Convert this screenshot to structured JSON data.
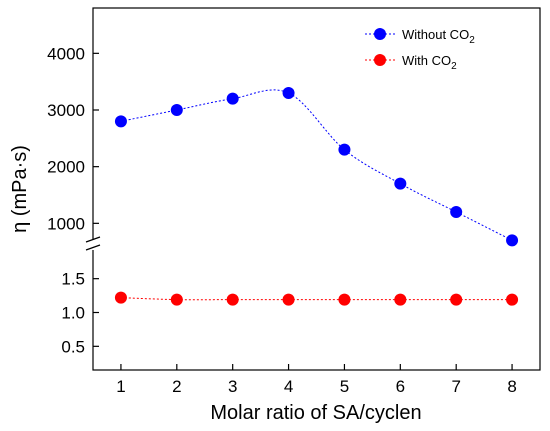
{
  "chart_data": {
    "type": "scatter",
    "xlabel": "Molar ratio of SA/cyclen",
    "ylabel": "η (mPa·s)",
    "x": [
      1,
      2,
      3,
      4,
      5,
      6,
      7,
      8
    ],
    "xlim": [
      0.5,
      8.5
    ],
    "x_ticks": [
      "1",
      "2",
      "3",
      "4",
      "5",
      "6",
      "7",
      "8"
    ],
    "y_axis": {
      "broken": true,
      "upper_segment": {
        "range": [
          600,
          4800
        ],
        "ticks": [
          "1000",
          "2000",
          "3000",
          "4000"
        ]
      },
      "lower_segment": {
        "range": [
          0.15,
          1.85
        ],
        "ticks": [
          "0.5",
          "1.0",
          "1.5"
        ]
      }
    },
    "legend_position": "top-right",
    "series": [
      {
        "name": "Without CO",
        "name_subscript": "2",
        "segment": "upper",
        "color": "#0000ff",
        "line": "dotted",
        "values": [
          2800,
          3000,
          3200,
          3300,
          2300,
          1700,
          1200,
          700
        ]
      },
      {
        "name": "With CO",
        "name_subscript": "2",
        "segment": "lower",
        "color": "#ff0000",
        "line": "dotted",
        "values": [
          1.22,
          1.19,
          1.19,
          1.19,
          1.19,
          1.19,
          1.19,
          1.19
        ]
      }
    ]
  }
}
